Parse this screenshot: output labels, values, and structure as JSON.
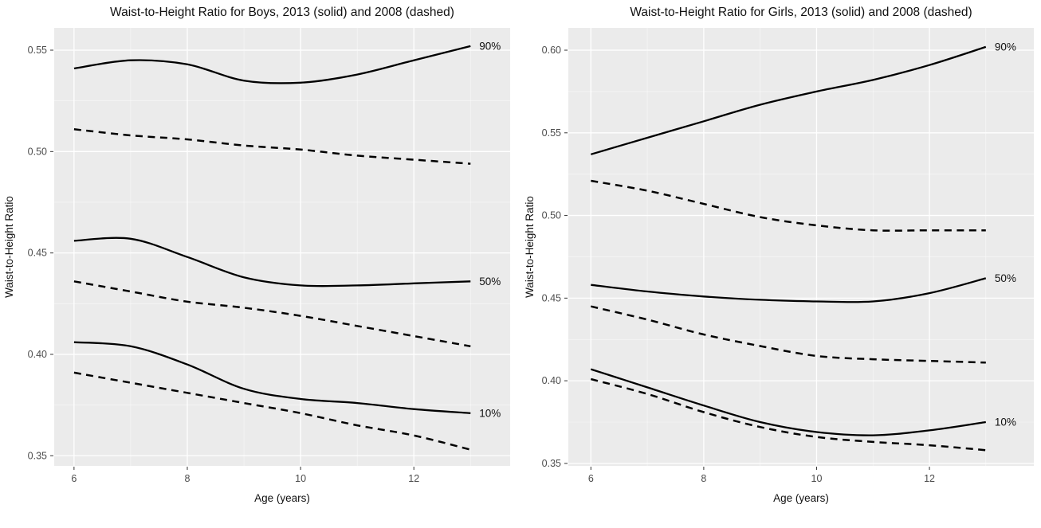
{
  "colors": {
    "panel_background": "#ebebeb",
    "grid_major": "#ffffff",
    "grid_minor": "#f7f7f7",
    "line": "#000000",
    "tick_text": "#4d4d4d",
    "tick_mark": "#333333",
    "title_text": "#111111",
    "page_background": "#ffffff"
  },
  "chart_data": [
    {
      "type": "line",
      "title": "Waist-to-Height Ratio for Boys, 2013 (solid) and 2008 (dashed)",
      "xlabel": "Age (years)",
      "ylabel": "Waist-to-Height Ratio",
      "x": [
        6,
        7,
        8,
        9,
        10,
        11,
        12,
        13
      ],
      "x_ticks": [
        6,
        8,
        10,
        12
      ],
      "y_ticks": [
        0.35,
        0.4,
        0.45,
        0.5,
        0.55
      ],
      "xlim": [
        5.65,
        13.7
      ],
      "ylim": [
        0.345,
        0.561
      ],
      "grid": {
        "major": true,
        "minor": true
      },
      "legend_position": "none",
      "line_style_legend": {
        "2013": "solid",
        "2008": "dashed"
      },
      "series": [
        {
          "name": "90th percentile 2013",
          "percentile": "90%",
          "year": 2013,
          "style": "solid",
          "label": "90%",
          "values": [
            0.541,
            0.545,
            0.543,
            0.535,
            0.534,
            0.538,
            0.545,
            0.552
          ]
        },
        {
          "name": "90th percentile 2008",
          "percentile": "90%",
          "year": 2008,
          "style": "dashed",
          "values": [
            0.511,
            0.508,
            0.506,
            0.503,
            0.501,
            0.498,
            0.496,
            0.494
          ]
        },
        {
          "name": "50th percentile 2013",
          "percentile": "50%",
          "year": 2013,
          "style": "solid",
          "label": "50%",
          "values": [
            0.456,
            0.457,
            0.448,
            0.438,
            0.434,
            0.434,
            0.435,
            0.436
          ]
        },
        {
          "name": "50th percentile 2008",
          "percentile": "50%",
          "year": 2008,
          "style": "dashed",
          "values": [
            0.436,
            0.431,
            0.426,
            0.423,
            0.419,
            0.414,
            0.409,
            0.404
          ]
        },
        {
          "name": "10th percentile 2013",
          "percentile": "10%",
          "year": 2013,
          "style": "solid",
          "label": "10%",
          "values": [
            0.406,
            0.404,
            0.395,
            0.383,
            0.378,
            0.376,
            0.373,
            0.371
          ]
        },
        {
          "name": "10th percentile 2008",
          "percentile": "10%",
          "year": 2008,
          "style": "dashed",
          "values": [
            0.391,
            0.386,
            0.381,
            0.376,
            0.371,
            0.365,
            0.36,
            0.353
          ]
        }
      ]
    },
    {
      "type": "line",
      "title": "Waist-to-Height Ratio for Girls, 2013 (solid) and 2008 (dashed)",
      "xlabel": "Age (years)",
      "ylabel": "Waist-to-Height Ratio",
      "x": [
        6,
        7,
        8,
        9,
        10,
        11,
        12,
        13
      ],
      "x_ticks": [
        6,
        8,
        10,
        12
      ],
      "y_ticks": [
        0.35,
        0.4,
        0.45,
        0.5,
        0.55,
        0.6
      ],
      "xlim": [
        5.6,
        13.85
      ],
      "ylim": [
        0.3485,
        0.6135
      ],
      "grid": {
        "major": true,
        "minor": true
      },
      "legend_position": "none",
      "line_style_legend": {
        "2013": "solid",
        "2008": "dashed"
      },
      "series": [
        {
          "name": "90th percentile 2013",
          "percentile": "90%",
          "year": 2013,
          "style": "solid",
          "label": "90%",
          "values": [
            0.537,
            0.547,
            0.557,
            0.567,
            0.575,
            0.582,
            0.591,
            0.602
          ]
        },
        {
          "name": "90th percentile 2008",
          "percentile": "90%",
          "year": 2008,
          "style": "dashed",
          "values": [
            0.521,
            0.515,
            0.507,
            0.499,
            0.494,
            0.491,
            0.491,
            0.491
          ]
        },
        {
          "name": "50th percentile 2013",
          "percentile": "50%",
          "year": 2013,
          "style": "solid",
          "label": "50%",
          "values": [
            0.458,
            0.454,
            0.451,
            0.449,
            0.448,
            0.448,
            0.453,
            0.462
          ]
        },
        {
          "name": "50th percentile 2008",
          "percentile": "50%",
          "year": 2008,
          "style": "dashed",
          "values": [
            0.445,
            0.437,
            0.428,
            0.421,
            0.415,
            0.413,
            0.412,
            0.411
          ]
        },
        {
          "name": "10th percentile 2013",
          "percentile": "10%",
          "year": 2013,
          "style": "solid",
          "label": "10%",
          "values": [
            0.407,
            0.396,
            0.385,
            0.375,
            0.369,
            0.367,
            0.37,
            0.375
          ]
        },
        {
          "name": "10th percentile 2008",
          "percentile": "10%",
          "year": 2008,
          "style": "dashed",
          "values": [
            0.401,
            0.392,
            0.381,
            0.372,
            0.366,
            0.363,
            0.361,
            0.358
          ]
        }
      ]
    }
  ]
}
